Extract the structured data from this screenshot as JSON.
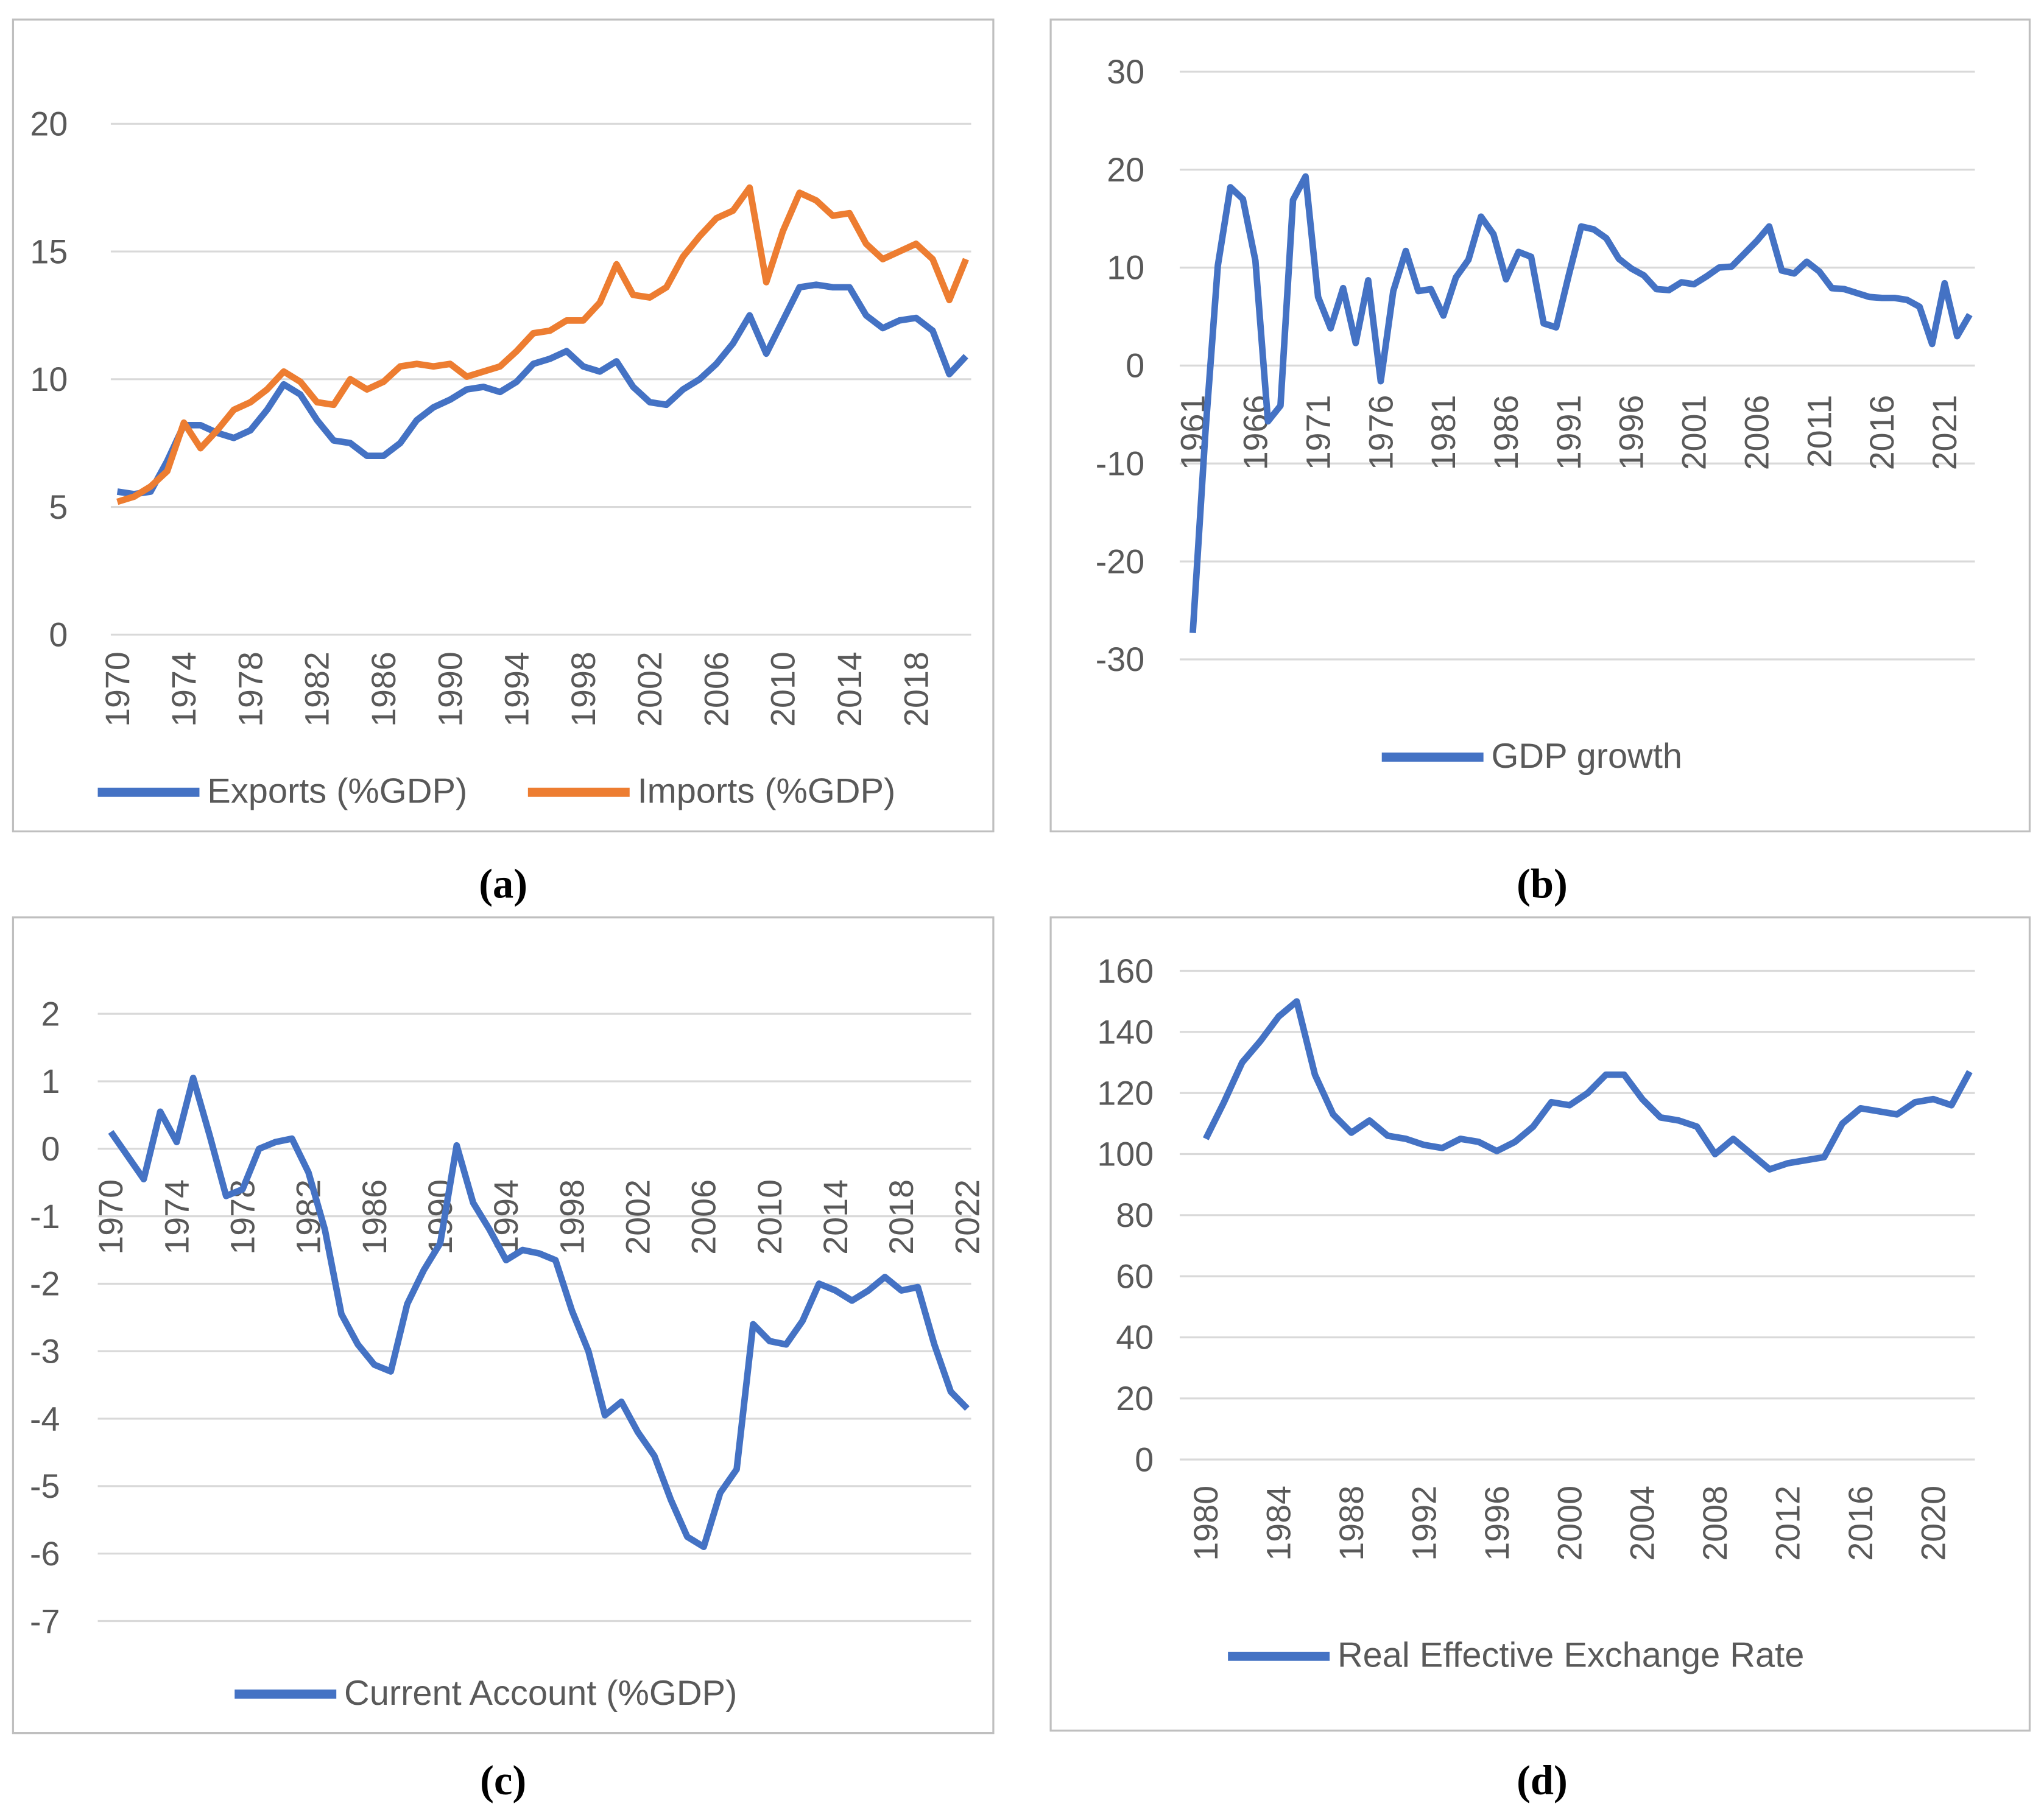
{
  "chart_data": [
    {
      "type": "line",
      "caption": "(a)",
      "grid": true,
      "legend": "bottom",
      "x": [
        1970,
        1971,
        1972,
        1973,
        1974,
        1975,
        1976,
        1977,
        1978,
        1979,
        1980,
        1981,
        1982,
        1983,
        1984,
        1985,
        1986,
        1987,
        1988,
        1989,
        1990,
        1991,
        1992,
        1993,
        1994,
        1995,
        1996,
        1997,
        1998,
        1999,
        2000,
        2001,
        2002,
        2003,
        2004,
        2005,
        2006,
        2007,
        2008,
        2009,
        2010,
        2011,
        2012,
        2013,
        2014,
        2015,
        2016,
        2017,
        2018,
        2019,
        2020,
        2021
      ],
      "xlim": [
        1970,
        2021
      ],
      "xticks": [
        1970,
        1974,
        1978,
        1982,
        1986,
        1990,
        1994,
        1998,
        2002,
        2006,
        2010,
        2014,
        2018
      ],
      "ylim": [
        0,
        20
      ],
      "yticks": [
        0,
        5,
        10,
        15,
        20
      ],
      "series": [
        {
          "name": "Exports (%GDP)",
          "color": "#4472c4",
          "values": [
            5.6,
            5.5,
            5.6,
            6.8,
            8.2,
            8.2,
            7.9,
            7.7,
            8.0,
            8.8,
            9.8,
            9.4,
            8.4,
            7.6,
            7.5,
            7.0,
            7.0,
            7.5,
            8.4,
            8.9,
            9.2,
            9.6,
            9.7,
            9.5,
            9.9,
            10.6,
            10.8,
            11.1,
            10.5,
            10.3,
            10.7,
            9.7,
            9.1,
            9.0,
            9.6,
            10.0,
            10.6,
            11.4,
            12.5,
            11.0,
            12.3,
            13.6,
            13.7,
            13.6,
            13.6,
            12.5,
            12.0,
            12.3,
            12.4,
            11.9,
            10.2,
            10.9
          ]
        },
        {
          "name": "Imports (%GDP)",
          "color": "#ed7d31",
          "values": [
            5.2,
            5.4,
            5.8,
            6.4,
            8.3,
            7.3,
            8.0,
            8.8,
            9.1,
            9.6,
            10.3,
            9.9,
            9.1,
            9.0,
            10.0,
            9.6,
            9.9,
            10.5,
            10.6,
            10.5,
            10.6,
            10.1,
            10.3,
            10.5,
            11.1,
            11.8,
            11.9,
            12.3,
            12.3,
            13.0,
            14.5,
            13.3,
            13.2,
            13.6,
            14.8,
            15.6,
            16.3,
            16.6,
            17.5,
            13.8,
            15.8,
            17.3,
            17.0,
            16.4,
            16.5,
            15.3,
            14.7,
            15.0,
            15.3,
            14.7,
            13.1,
            14.7
          ]
        }
      ]
    },
    {
      "type": "line",
      "caption": "(b)",
      "grid": true,
      "legend": "bottom",
      "x": [
        1961,
        1962,
        1963,
        1964,
        1965,
        1966,
        1967,
        1968,
        1969,
        1970,
        1971,
        1972,
        1973,
        1974,
        1975,
        1976,
        1977,
        1978,
        1979,
        1980,
        1981,
        1982,
        1983,
        1984,
        1985,
        1986,
        1987,
        1988,
        1989,
        1990,
        1991,
        1992,
        1993,
        1994,
        1995,
        1996,
        1997,
        1998,
        1999,
        2000,
        2001,
        2002,
        2003,
        2004,
        2005,
        2006,
        2007,
        2008,
        2009,
        2010,
        2011,
        2012,
        2013,
        2014,
        2015,
        2016,
        2017,
        2018,
        2019,
        2020,
        2021,
        2022,
        2023
      ],
      "xlim": [
        1961,
        2023
      ],
      "xticks": [
        1961,
        1966,
        1971,
        1976,
        1981,
        1986,
        1991,
        1996,
        2001,
        2006,
        2011,
        2016,
        2021
      ],
      "ylim": [
        -30,
        30
      ],
      "yticks": [
        -30,
        -20,
        -10,
        0,
        10,
        20,
        30
      ],
      "series": [
        {
          "name": "GDP growth",
          "color": "#4472c4",
          "values": [
            -27.3,
            -7,
            10.2,
            18.2,
            17.0,
            10.7,
            -5.7,
            -4.1,
            16.9,
            19.3,
            7.0,
            3.8,
            7.9,
            2.3,
            8.7,
            -1.6,
            7.6,
            11.7,
            7.6,
            7.8,
            5.1,
            9.0,
            10.8,
            15.2,
            13.4,
            8.8,
            11.6,
            11.1,
            4.3,
            3.9,
            9.2,
            14.2,
            13.9,
            13.0,
            10.9,
            9.9,
            9.2,
            7.8,
            7.7,
            8.5,
            8.3,
            9.1,
            10.0,
            10.1,
            11.4,
            12.7,
            14.2,
            9.7,
            9.4,
            10.6,
            9.6,
            7.9,
            7.8,
            7.4,
            7.0,
            6.9,
            6.9,
            6.7,
            6.0,
            2.2,
            8.4,
            3.0,
            5.2
          ]
        }
      ]
    },
    {
      "type": "line",
      "caption": "(c)",
      "grid": true,
      "legend": "bottom",
      "x": [
        1970,
        1971,
        1972,
        1973,
        1974,
        1975,
        1976,
        1977,
        1978,
        1979,
        1980,
        1981,
        1982,
        1983,
        1984,
        1985,
        1986,
        1987,
        1988,
        1989,
        1990,
        1991,
        1992,
        1993,
        1994,
        1995,
        1996,
        1997,
        1998,
        1999,
        2000,
        2001,
        2002,
        2003,
        2004,
        2005,
        2006,
        2007,
        2008,
        2009,
        2010,
        2011,
        2012,
        2013,
        2014,
        2015,
        2016,
        2017,
        2018,
        2019,
        2020,
        2021,
        2022
      ],
      "xlim": [
        1970,
        2022
      ],
      "xticks": [
        1970,
        1974,
        1978,
        1982,
        1986,
        1990,
        1994,
        1998,
        2002,
        2006,
        2010,
        2014,
        2018,
        2022
      ],
      "ylim": [
        -7,
        2
      ],
      "yticks": [
        -7,
        -6,
        -5,
        -4,
        -3,
        -2,
        -1,
        0,
        1,
        2
      ],
      "series": [
        {
          "name": "Current Account (%GDP)",
          "color": "#4472c4",
          "values": [
            0.25,
            -0.1,
            -0.45,
            0.55,
            0.1,
            1.05,
            0.2,
            -0.7,
            -0.6,
            0.0,
            0.1,
            0.15,
            -0.35,
            -1.2,
            -2.45,
            -2.9,
            -3.2,
            -3.3,
            -2.3,
            -1.8,
            -1.4,
            0.05,
            -0.8,
            -1.2,
            -1.65,
            -1.5,
            -1.55,
            -1.65,
            -2.4,
            -3.0,
            -3.95,
            -3.75,
            -4.2,
            -4.55,
            -5.2,
            -5.75,
            -5.9,
            -5.1,
            -4.75,
            -2.6,
            -2.85,
            -2.9,
            -2.55,
            -2.0,
            -2.1,
            -2.25,
            -2.1,
            -1.9,
            -2.1,
            -2.05,
            -2.9,
            -3.6,
            -3.85
          ]
        }
      ]
    },
    {
      "type": "line",
      "caption": "(d)",
      "grid": true,
      "legend": "bottom",
      "x": [
        1980,
        1981,
        1982,
        1983,
        1984,
        1985,
        1986,
        1987,
        1988,
        1989,
        1990,
        1991,
        1992,
        1993,
        1994,
        1995,
        1996,
        1997,
        1998,
        1999,
        2000,
        2001,
        2002,
        2003,
        2004,
        2005,
        2006,
        2007,
        2008,
        2009,
        2010,
        2011,
        2012,
        2013,
        2014,
        2015,
        2016,
        2017,
        2018,
        2019,
        2020,
        2021,
        2022
      ],
      "xlim": [
        1980,
        2022
      ],
      "xticks": [
        1980,
        1984,
        1988,
        1992,
        1996,
        2000,
        2004,
        2008,
        2012,
        2016,
        2020
      ],
      "ylim": [
        0,
        160
      ],
      "yticks": [
        0,
        20,
        40,
        60,
        80,
        100,
        120,
        140,
        160
      ],
      "series": [
        {
          "name": "Real Effective Exchange Rate",
          "color": "#4472c4",
          "values": [
            105,
            117,
            130,
            137,
            145,
            150,
            126,
            113,
            107,
            111,
            106,
            105,
            103,
            102,
            105,
            104,
            101,
            104,
            109,
            117,
            116,
            120,
            126,
            126,
            118,
            112,
            111,
            109,
            100,
            105,
            100,
            95,
            97,
            98,
            99,
            110,
            115,
            114,
            113,
            117,
            118,
            116,
            127
          ]
        }
      ]
    }
  ]
}
